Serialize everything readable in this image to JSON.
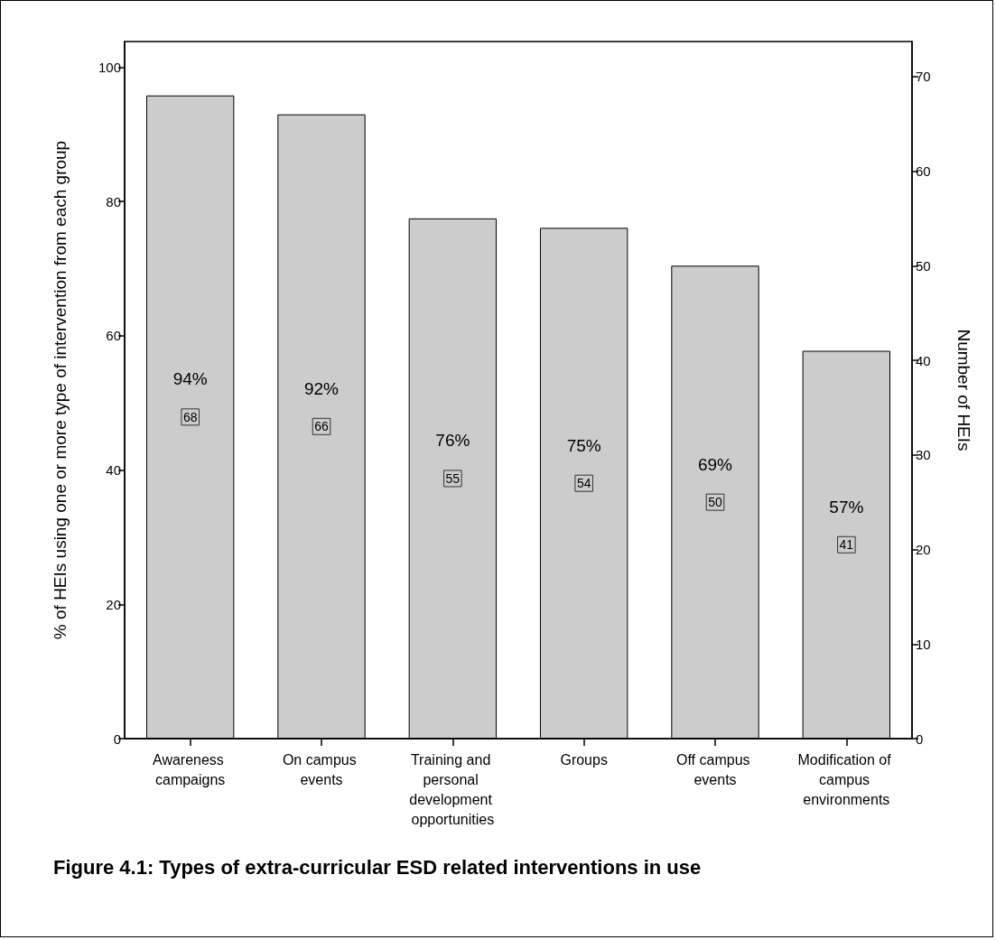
{
  "chart_data": {
    "type": "bar",
    "title": "Figure 4.1: Types of extra-curricular ESD related interventions in use",
    "categories": [
      "Awareness campaigns",
      "On campus events",
      "Training and personal development opportunities",
      "Groups",
      "Off campus events",
      "Modification of campus environments"
    ],
    "series": [
      {
        "color": "#cccccc",
        "axis": "y2",
        "values": [
          68,
          66,
          55,
          54,
          50,
          41
        ]
      }
    ],
    "data_labels": true,
    "ylabel": "% of HEIs using one or more type of intervention from each group",
    "y2label": "Number of HEIs",
    "ylim": [
      0,
      103.8
    ],
    "yticks": [
      0,
      20,
      40,
      60,
      80,
      100
    ],
    "y2lim": [
      0,
      73.7
    ],
    "y2ticks": [
      0,
      10,
      20,
      30,
      40,
      50,
      60,
      70
    ],
    "grid": false,
    "annotations": [
      "94%",
      "92%",
      "76%",
      "75%",
      "69%",
      "57%"
    ]
  }
}
